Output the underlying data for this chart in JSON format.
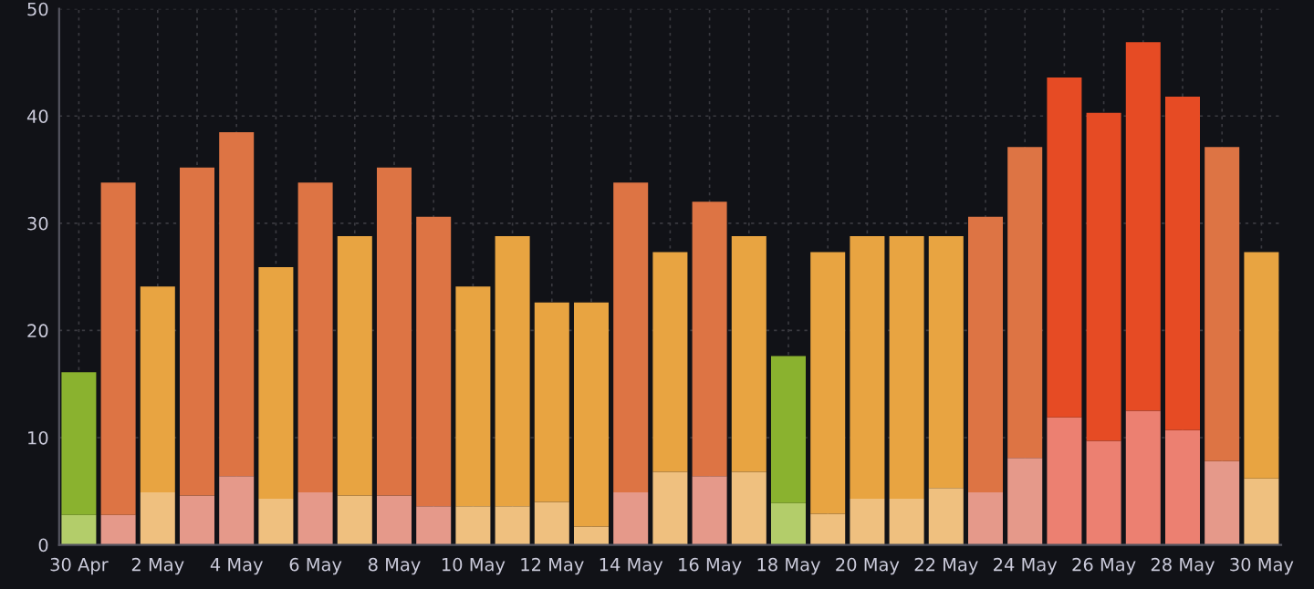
{
  "chart_data": {
    "type": "bar",
    "stacked": true,
    "categories": [
      "30 Apr",
      null,
      "2 May",
      null,
      "4 May",
      null,
      "6 May",
      null,
      "8 May",
      null,
      "10 May",
      null,
      "12 May",
      null,
      "14 May",
      null,
      "16 May",
      null,
      "18 May",
      null,
      "20 May",
      null,
      "22 May",
      null,
      "24 May",
      null,
      "26 May",
      null,
      "28 May",
      null,
      "30 May"
    ],
    "series": [
      {
        "values": [
          2.8,
          2.8,
          4.9,
          4.6,
          6.4,
          4.3,
          4.9,
          4.6,
          4.6,
          3.6,
          3.6,
          3.6,
          4.0,
          1.7,
          4.9,
          6.8,
          6.4,
          6.8,
          3.9,
          2.9,
          4.3,
          4.3,
          5.3,
          4.9,
          8.1,
          11.9,
          9.7,
          12.5,
          10.7,
          7.8,
          6.2
        ],
        "colors": [
          "#b3cd6a",
          "#e5998a",
          "#efc07f",
          "#e5998a",
          "#e5998a",
          "#efc07f",
          "#e5998a",
          "#efc07f",
          "#e5998a",
          "#e5998a",
          "#efc07f",
          "#efc07f",
          "#efc07f",
          "#efc07f",
          "#e5998a",
          "#efc07f",
          "#e5998a",
          "#efc07f",
          "#b3cd6a",
          "#efc07f",
          "#efc07f",
          "#efc07f",
          "#efc07f",
          "#e5998a",
          "#e5998a",
          "#ec8071",
          "#ec8071",
          "#ec8071",
          "#ec8071",
          "#e5998a",
          "#efc07f"
        ]
      },
      {
        "values": [
          13.3,
          31.0,
          19.2,
          30.6,
          32.1,
          21.6,
          28.9,
          24.2,
          30.6,
          27.0,
          20.5,
          25.2,
          18.6,
          20.9,
          28.9,
          20.5,
          25.6,
          22.0,
          13.7,
          24.4,
          24.5,
          24.5,
          23.5,
          25.7,
          29.0,
          31.7,
          30.6,
          34.4,
          31.1,
          29.3,
          21.1
        ],
        "colors": [
          "#8ab22f",
          "#dd7444",
          "#e8a441",
          "#dd7444",
          "#dd7444",
          "#e8a441",
          "#dd7444",
          "#e8a441",
          "#dd7444",
          "#dd7444",
          "#e8a441",
          "#e8a441",
          "#e8a441",
          "#e8a441",
          "#dd7444",
          "#e8a441",
          "#dd7444",
          "#e8a441",
          "#8ab22f",
          "#e8a441",
          "#e8a441",
          "#e8a441",
          "#e8a441",
          "#dd7444",
          "#dd7444",
          "#e64b24",
          "#e64b24",
          "#e64b24",
          "#e64b24",
          "#dd7444",
          "#e8a441"
        ]
      }
    ],
    "ylim": [
      0,
      50
    ],
    "yticks": [
      0,
      10,
      20,
      30,
      40,
      50
    ],
    "grid": true
  }
}
